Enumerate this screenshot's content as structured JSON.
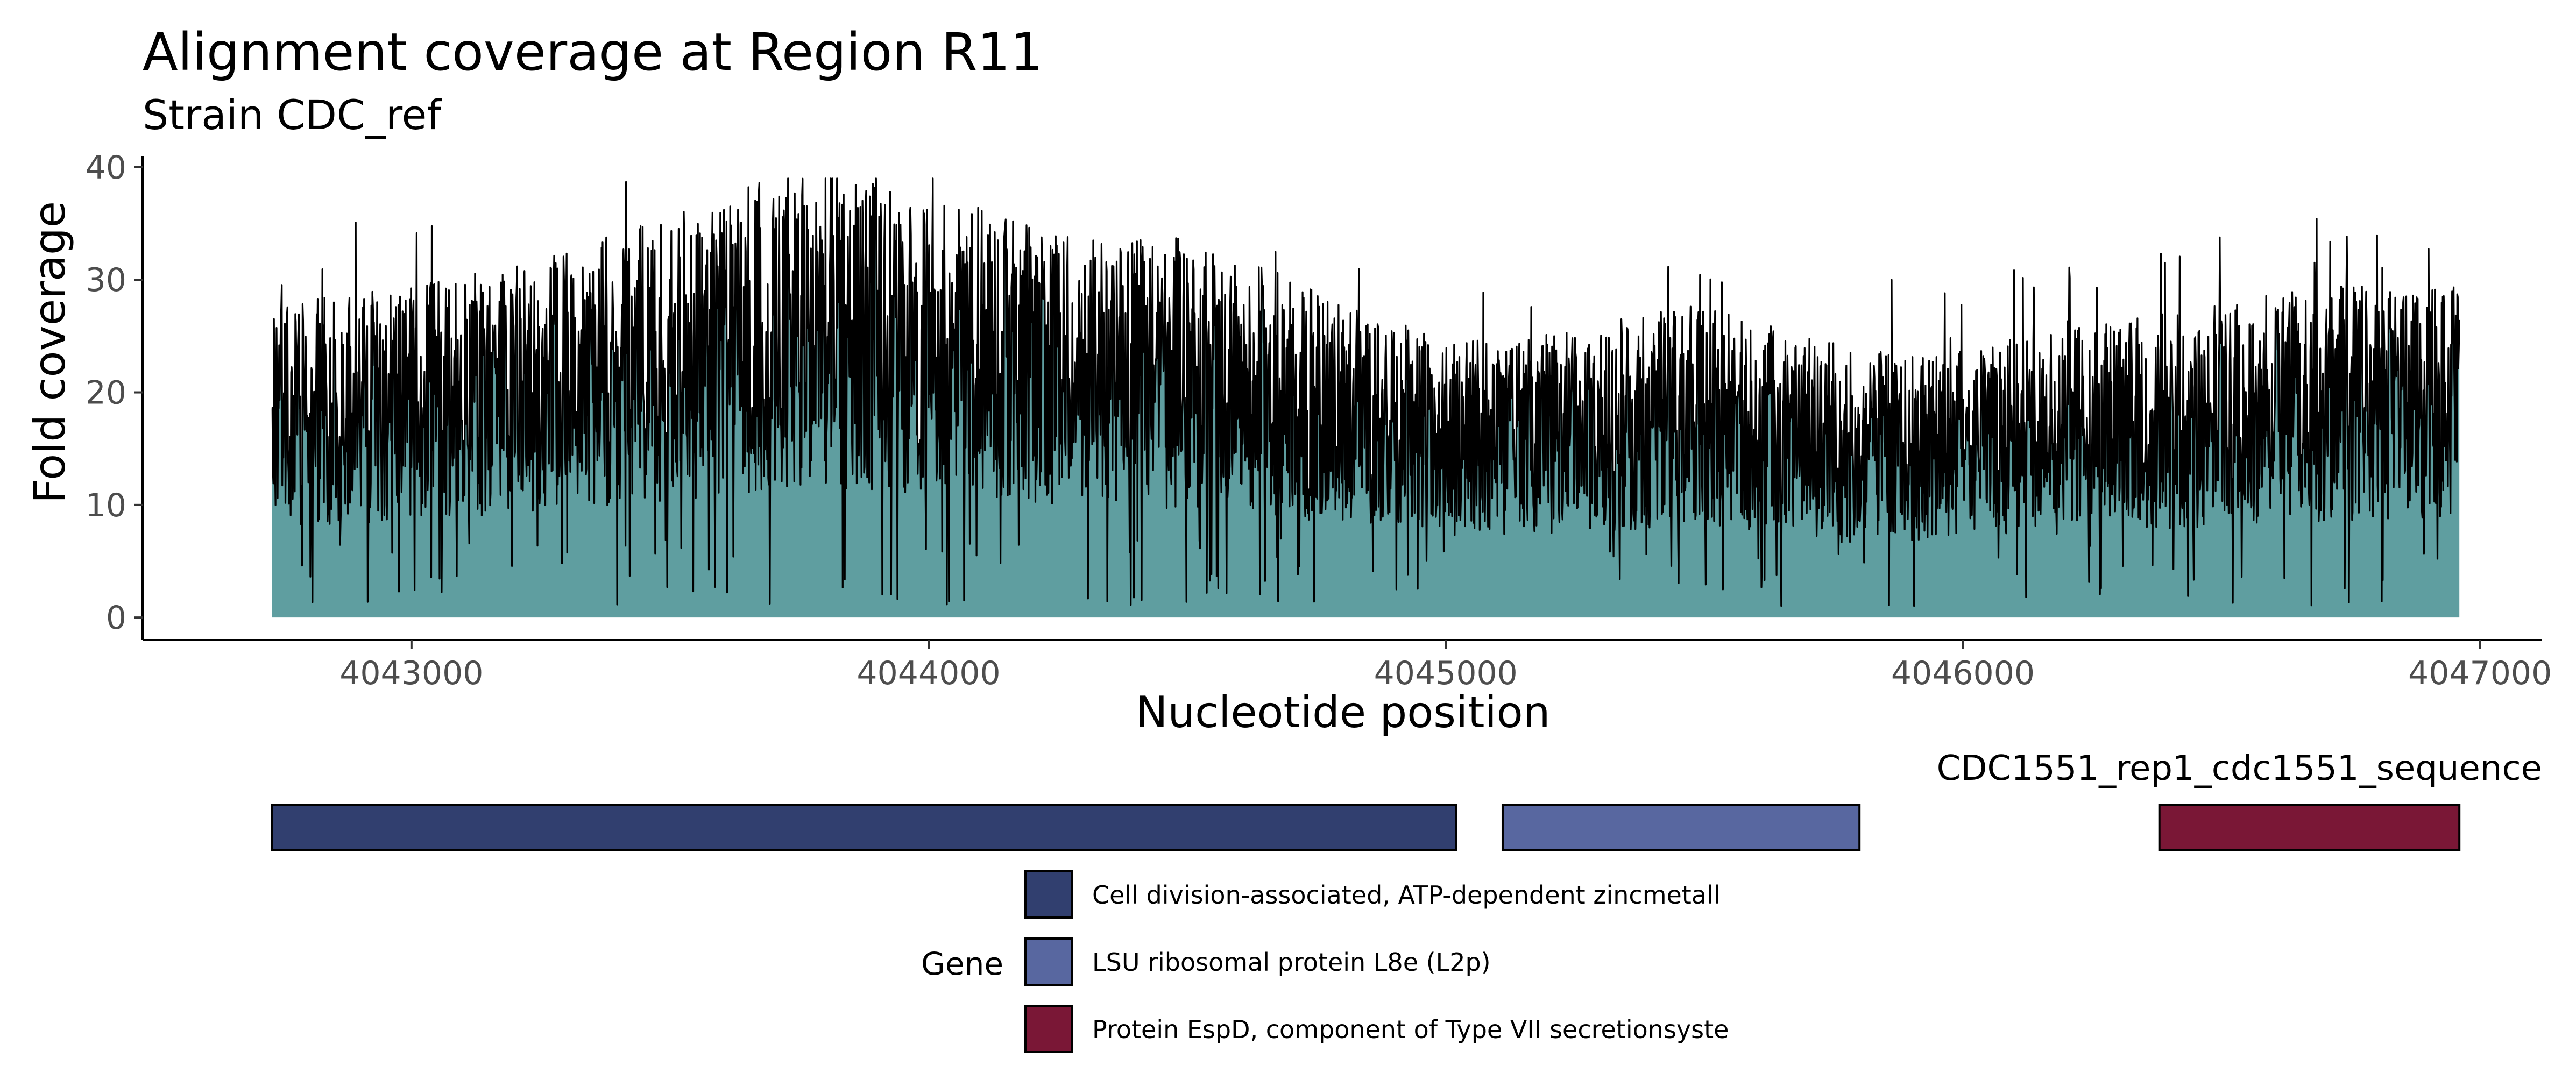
{
  "chart_data": {
    "type": "area",
    "title": "Alignment coverage at Region R11",
    "subtitle": "Strain CDC_ref",
    "xlabel": "Nucleotide position",
    "ylabel": "Fold coverage",
    "xlim": [
      4042480,
      4047120
    ],
    "ylim": [
      -2,
      41
    ],
    "x_ticks": [
      4043000,
      4044000,
      4045000,
      4046000,
      4047000
    ],
    "x_tick_labels": [
      "4043000",
      "4044000",
      "4045000",
      "4046000",
      "4047000"
    ],
    "y_ticks": [
      0,
      10,
      20,
      30,
      40
    ],
    "y_tick_labels": [
      "0",
      "10",
      "20",
      "30",
      "40"
    ],
    "grid": false,
    "coverage": {
      "x_start": 4042730,
      "x_end": 4046960,
      "fill_color": "#5f9ea0",
      "line_color": "#000000",
      "trend_x": [
        4042730,
        4043000,
        4043300,
        4043600,
        4043750,
        4044000,
        4044300,
        4044600,
        4044800,
        4045000,
        4045150,
        4045300,
        4045500,
        4045700,
        4045900,
        4046100,
        4046300,
        4046500,
        4046700,
        4046960
      ],
      "trend_y": [
        18,
        19,
        21,
        24,
        26,
        24,
        22,
        21,
        18,
        16,
        16,
        17,
        18,
        16,
        15,
        16,
        17,
        18,
        19,
        19
      ],
      "max": 39,
      "min": 1
    },
    "gene_track": {
      "label": "CDC1551_rep1_cdc1551_sequence",
      "genes": [
        {
          "start": 4042730,
          "end": 4045020,
          "gene": "Cell division-associated, ATP-dependent zincmetall",
          "color": "#313f6f"
        },
        {
          "start": 4045110,
          "end": 4045800,
          "gene": "LSU ribosomal protein L8e (L2p)",
          "color": "#5867a0"
        },
        {
          "start": 4046380,
          "end": 4046960,
          "gene": "Protein EspD, component of Type VII secretionsyste",
          "color": "#7a1736"
        }
      ]
    },
    "legend": {
      "title": "Gene",
      "placement": "bottom",
      "entries": [
        {
          "label": "Cell division-associated, ATP-dependent zincmetall",
          "color": "#313f6f"
        },
        {
          "label": "LSU ribosomal protein L8e (L2p)",
          "color": "#5867a0"
        },
        {
          "label": "Protein EspD, component of Type VII secretionsyste",
          "color": "#7a1736"
        }
      ]
    }
  }
}
